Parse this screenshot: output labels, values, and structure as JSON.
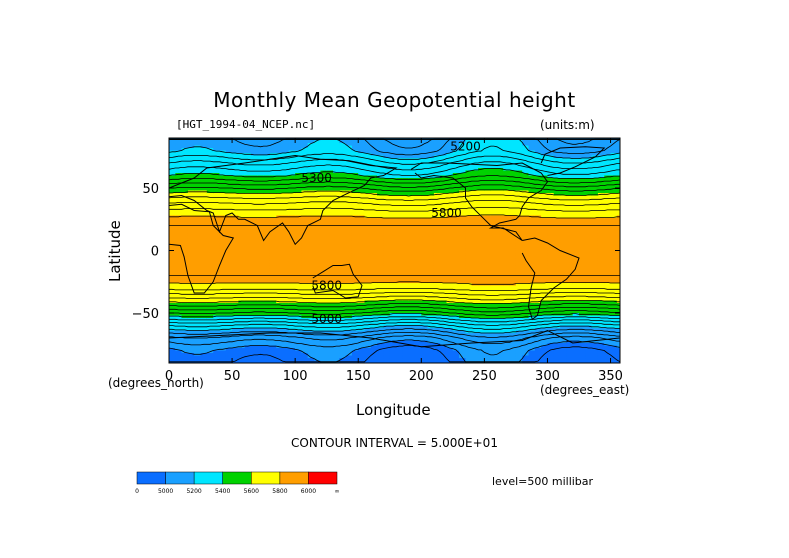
{
  "chart_data": {
    "type": "heatmap",
    "title": "Monthly Mean Geopotential height",
    "file_label": "[HGT_1994-04_NCEP.nc]",
    "units_label": "(units:m)",
    "xlabel": "Longitude",
    "ylabel": "Latitude",
    "x_units": "(degrees_east)",
    "y_units": "(degrees_north)",
    "xlim": [
      0,
      357.5
    ],
    "ylim": [
      -90,
      90
    ],
    "x_ticks": [
      0,
      50,
      100,
      150,
      200,
      250,
      300,
      350
    ],
    "y_ticks": [
      -50,
      0,
      50
    ],
    "contour_interval_text": "CONTOUR INTERVAL = 5.000E+01",
    "level_text": "level=500 millibar",
    "contour_labels": [
      {
        "text": "5200",
        "lon": 235,
        "lat": 80
      },
      {
        "text": "5300",
        "lon": 117,
        "lat": 55
      },
      {
        "text": "5800",
        "lon": 220,
        "lat": 27
      },
      {
        "text": "5800",
        "lon": 125,
        "lat": -31
      },
      {
        "text": "5000",
        "lon": 125,
        "lat": -58
      }
    ],
    "color_levels": {
      "boundaries": [
        "0",
        "5000",
        "5200",
        "5400",
        "5600",
        "5800",
        "6000",
        "∞"
      ],
      "colors": [
        "#0a6eff",
        "#1aa0ff",
        "#00e6ff",
        "#00d200",
        "#ffff00",
        "#ff9e00",
        "#ff0000"
      ]
    },
    "zonal_profile_m": [
      {
        "lat": 90,
        "value": 5150
      },
      {
        "lat": 80,
        "value": 5180
      },
      {
        "lat": 70,
        "value": 5300
      },
      {
        "lat": 60,
        "value": 5400
      },
      {
        "lat": 50,
        "value": 5550
      },
      {
        "lat": 40,
        "value": 5680
      },
      {
        "lat": 30,
        "value": 5780
      },
      {
        "lat": 20,
        "value": 5850
      },
      {
        "lat": 10,
        "value": 5870
      },
      {
        "lat": 0,
        "value": 5870
      },
      {
        "lat": -10,
        "value": 5870
      },
      {
        "lat": -20,
        "value": 5850
      },
      {
        "lat": -30,
        "value": 5770
      },
      {
        "lat": -40,
        "value": 5620
      },
      {
        "lat": -50,
        "value": 5450
      },
      {
        "lat": -60,
        "value": 5250
      },
      {
        "lat": -70,
        "value": 5080
      },
      {
        "lat": -80,
        "value": 4980
      },
      {
        "lat": -90,
        "value": 4950
      }
    ]
  }
}
